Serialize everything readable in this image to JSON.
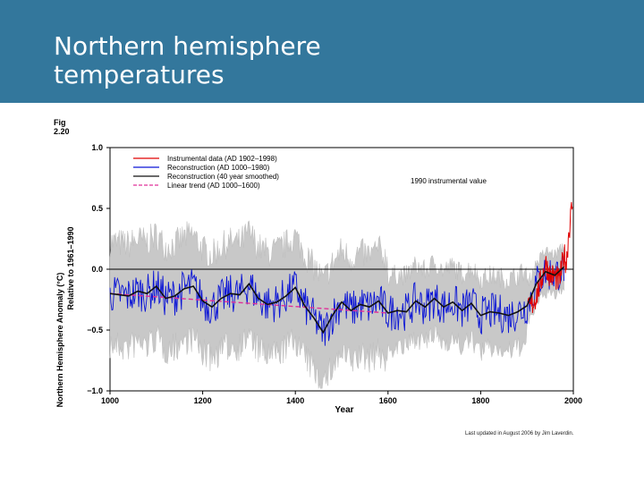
{
  "slide": {
    "title": "Northern hemisphere\ntemperatures",
    "fig_label": "Fig\n2.20",
    "credit": "Last updated in August 2006 by Jim Laverdin."
  },
  "colors": {
    "header_bg": "#33779c",
    "instrumental": "#e00000",
    "reconstruction": "#0a14d6",
    "smoothed": "#111111",
    "trend": "#e0309a",
    "uncertainty": "#c8c8c8"
  },
  "chart_data": {
    "type": "line",
    "title": "",
    "xlabel": "Year",
    "ylabel": "Northern Hemisphere Anomaly (°C)",
    "ylabel2": "Relative to 1961–1990",
    "xlim": [
      1000,
      2000
    ],
    "ylim": [
      -1.0,
      1.0
    ],
    "x_ticks": [
      "1000",
      "1200",
      "1400",
      "1600",
      "1800",
      "2000"
    ],
    "y_ticks": [
      "1.0",
      "0.5",
      "0.0",
      "−0.5",
      "−1.0"
    ],
    "annotation": "1990 instrumental value",
    "legend": [
      {
        "label": "Instrumental data (AD 1902–1998)",
        "color": "#e00000",
        "style": "solid"
      },
      {
        "label": "Reconstruction (AD 1000–1980)",
        "color": "#0a14d6",
        "style": "solid"
      },
      {
        "label": "Reconstruction (40 year smoothed)",
        "color": "#111111",
        "style": "solid"
      },
      {
        "label": "Linear trend (AD 1000–1600)",
        "color": "#e0309a",
        "style": "dashed"
      }
    ],
    "series": [
      {
        "name": "Reconstruction (40 year smoothed)",
        "x": [
          1000,
          1020,
          1040,
          1060,
          1080,
          1100,
          1120,
          1140,
          1160,
          1180,
          1200,
          1220,
          1240,
          1260,
          1280,
          1300,
          1320,
          1340,
          1360,
          1380,
          1400,
          1420,
          1440,
          1460,
          1480,
          1500,
          1520,
          1540,
          1560,
          1580,
          1600,
          1620,
          1640,
          1660,
          1680,
          1700,
          1720,
          1740,
          1760,
          1780,
          1800,
          1820,
          1840,
          1860,
          1880,
          1900,
          1920,
          1940,
          1960,
          1980
        ],
        "y": [
          -0.2,
          -0.21,
          -0.22,
          -0.18,
          -0.2,
          -0.14,
          -0.24,
          -0.22,
          -0.16,
          -0.14,
          -0.26,
          -0.31,
          -0.24,
          -0.2,
          -0.21,
          -0.12,
          -0.24,
          -0.29,
          -0.27,
          -0.22,
          -0.15,
          -0.3,
          -0.4,
          -0.52,
          -0.38,
          -0.27,
          -0.34,
          -0.29,
          -0.31,
          -0.26,
          -0.36,
          -0.34,
          -0.35,
          -0.26,
          -0.31,
          -0.24,
          -0.31,
          -0.27,
          -0.34,
          -0.28,
          -0.38,
          -0.35,
          -0.36,
          -0.38,
          -0.35,
          -0.3,
          -0.12,
          -0.02,
          -0.05,
          0.02
        ]
      },
      {
        "name": "Linear trend (AD 1000–1600)",
        "x": [
          1000,
          1600
        ],
        "y": [
          -0.2,
          -0.36
        ]
      },
      {
        "name": "Instrumental data (AD 1902–1998)",
        "x": [
          1902,
          1910,
          1920,
          1930,
          1940,
          1950,
          1960,
          1970,
          1980,
          1985,
          1990,
          1995,
          1998
        ],
        "y": [
          -0.35,
          -0.3,
          -0.22,
          -0.1,
          0.05,
          -0.05,
          -0.06,
          -0.1,
          0.12,
          0.05,
          0.3,
          0.45,
          0.55
        ]
      },
      {
        "name": "Reconstruction (AD 1000–1980)",
        "x": [
          1000,
          1100,
          1200,
          1300,
          1400,
          1450,
          1500,
          1600,
          1700,
          1800,
          1900,
          1950,
          1980
        ],
        "y": [
          -0.2,
          -0.15,
          -0.25,
          -0.12,
          -0.18,
          -0.5,
          -0.28,
          -0.33,
          -0.25,
          -0.35,
          -0.3,
          -0.02,
          0.05
        ]
      }
    ]
  }
}
